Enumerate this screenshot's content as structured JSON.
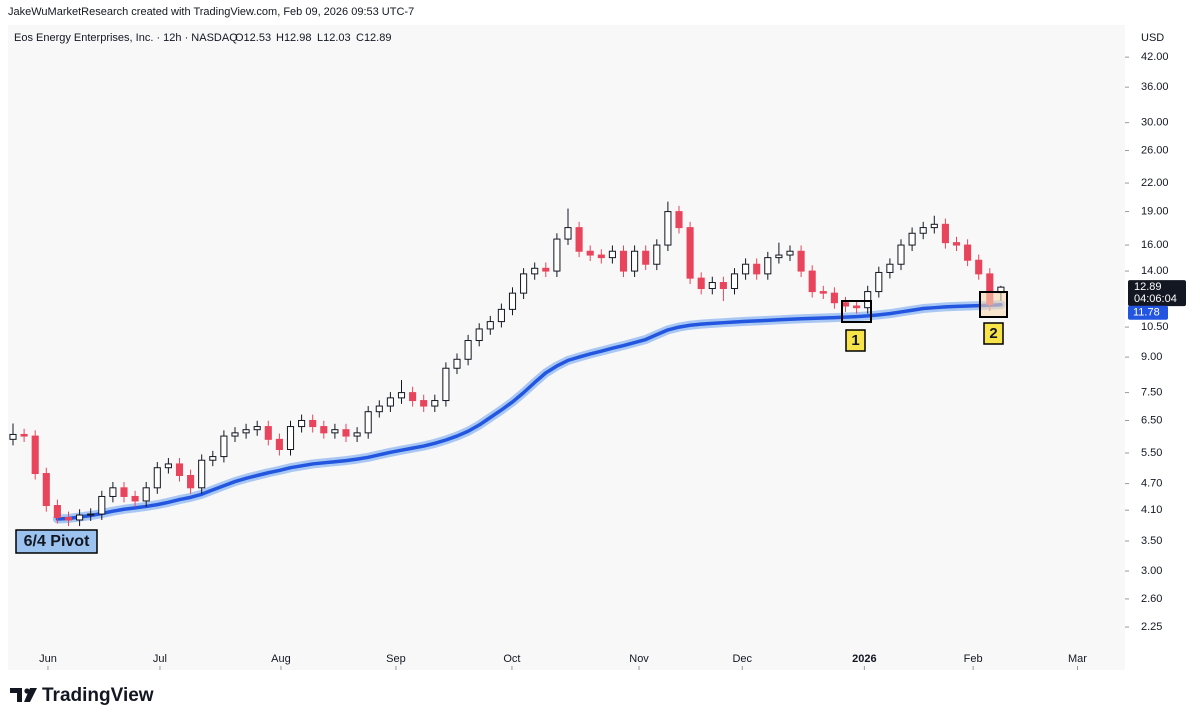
{
  "chart_data": {
    "type": "candlestick",
    "header": "JakeWuMarketResearch created with TradingView.com, Feb 09, 2026 09:53 UTC-7",
    "title": "Eos Energy Enterprises, Inc. · 12h · NASDAQ",
    "ohlc_labels": [
      "O12.53",
      "H12.98",
      "L12.03",
      "C12.89"
    ],
    "currency": "USD",
    "countdown": "04:06:04",
    "brand": "TradingView",
    "annotations": [
      "6/4 Pivot",
      "1",
      "2"
    ],
    "log_scale": true,
    "up_color": "#ffffff",
    "up_stroke": "#131722",
    "down_color": "#e8455c",
    "open": [
      5.9,
      6.05,
      6.0,
      4.95,
      4.2,
      3.95,
      3.9,
      4.0,
      4.02,
      4.4,
      4.6,
      4.4,
      4.3,
      4.6,
      5.1,
      5.2,
      4.9,
      4.6,
      5.3,
      5.4,
      6.0,
      6.1,
      6.2,
      6.3,
      5.9,
      5.6,
      6.3,
      6.5,
      6.3,
      6.1,
      6.2,
      6.0,
      6.1,
      6.8,
      7.0,
      7.3,
      7.5,
      7.2,
      7.0,
      7.2,
      8.5,
      8.9,
      9.8,
      10.4,
      10.8,
      11.5,
      12.5,
      13.8,
      14.2,
      14.0,
      16.5,
      17.5,
      15.5,
      15.2,
      15.0,
      15.5,
      14.0,
      15.5,
      14.5,
      16.0,
      19.0,
      17.5,
      13.5,
      12.8,
      13.2,
      12.8,
      13.8,
      14.5,
      13.8,
      15.0,
      15.2,
      15.5,
      14.0,
      12.6,
      12.5,
      11.9,
      11.7,
      11.6,
      12.6,
      13.9,
      14.5,
      16.0,
      17.0,
      17.5,
      17.8,
      16.2,
      16.0,
      14.8,
      13.8,
      12.53
    ],
    "high": [
      6.4,
      6.23,
      6.18,
      5.1,
      4.33,
      4.07,
      4.12,
      4.14,
      4.53,
      4.74,
      4.74,
      4.53,
      4.74,
      5.25,
      5.36,
      5.36,
      5.05,
      5.46,
      5.56,
      6.18,
      6.28,
      6.39,
      6.49,
      6.49,
      6.08,
      6.49,
      6.7,
      6.7,
      6.49,
      6.39,
      6.39,
      6.28,
      7.0,
      7.21,
      7.52,
      8.0,
      7.73,
      7.42,
      7.42,
      8.76,
      9.17,
      10.09,
      10.71,
      11.12,
      11.85,
      12.88,
      14.21,
      14.63,
      14.63,
      17.0,
      19.3,
      18.03,
      15.97,
      15.66,
      15.97,
      15.97,
      15.97,
      15.97,
      16.48,
      20.0,
      19.57,
      18.03,
      13.91,
      13.6,
      13.6,
      14.21,
      14.94,
      14.94,
      15.45,
      16.2,
      15.97,
      15.97,
      14.42,
      12.98,
      12.88,
      12.26,
      12.05,
      12.98,
      14.32,
      14.94,
      16.48,
      17.51,
      18.03,
      18.6,
      18.33,
      16.69,
      16.48,
      15.24,
      14.21,
      12.98
    ],
    "low": [
      5.72,
      5.82,
      4.8,
      4.07,
      3.83,
      3.78,
      3.78,
      3.88,
      3.9,
      4.27,
      4.27,
      4.17,
      4.17,
      4.46,
      4.95,
      4.75,
      4.46,
      4.46,
      5.14,
      5.24,
      5.82,
      5.92,
      6.01,
      5.72,
      5.43,
      5.43,
      6.11,
      6.11,
      5.92,
      5.92,
      5.82,
      5.82,
      5.92,
      6.6,
      6.79,
      7.08,
      6.98,
      6.79,
      6.79,
      6.98,
      8.25,
      8.63,
      9.51,
      10.09,
      10.48,
      11.16,
      12.13,
      13.39,
      13.58,
      13.58,
      16.01,
      15.04,
      14.74,
      14.55,
      14.55,
      13.58,
      13.58,
      14.07,
      14.07,
      15.52,
      16.98,
      13.1,
      12.42,
      12.42,
      12.0,
      12.42,
      13.39,
      13.39,
      13.39,
      14.55,
      14.74,
      13.58,
      12.22,
      12.13,
      11.54,
      11.35,
      11.25,
      11.25,
      12.22,
      13.48,
      14.07,
      15.52,
      16.49,
      16.98,
      15.71,
      15.52,
      14.36,
      13.39,
      11.4,
      12.03
    ],
    "close": [
      6.05,
      6.0,
      4.95,
      4.2,
      3.95,
      3.9,
      4.0,
      4.02,
      4.4,
      4.6,
      4.4,
      4.3,
      4.6,
      5.1,
      5.2,
      4.9,
      4.6,
      5.3,
      5.4,
      6.0,
      6.1,
      6.2,
      6.3,
      5.9,
      5.6,
      6.3,
      6.5,
      6.3,
      6.1,
      6.2,
      6.0,
      6.1,
      6.8,
      7.0,
      7.3,
      7.5,
      7.2,
      7.0,
      7.2,
      8.5,
      8.9,
      9.8,
      10.4,
      10.8,
      11.5,
      12.5,
      13.8,
      14.2,
      14.0,
      16.5,
      17.5,
      15.5,
      15.2,
      15.0,
      15.5,
      14.0,
      15.5,
      14.5,
      16.0,
      19.0,
      17.5,
      13.5,
      12.8,
      13.2,
      12.8,
      13.8,
      14.5,
      13.8,
      15.0,
      15.2,
      15.5,
      14.0,
      12.6,
      12.5,
      11.9,
      11.7,
      11.6,
      12.6,
      13.9,
      14.5,
      16.0,
      17.0,
      17.5,
      17.8,
      16.2,
      16.0,
      14.8,
      13.8,
      11.8,
      12.89
    ],
    "overlay": {
      "color": "#2356e0",
      "band_color": "#a9c7f3",
      "values": [
        null,
        null,
        null,
        null,
        3.92,
        3.93,
        3.96,
        3.99,
        4.03,
        4.08,
        4.12,
        4.15,
        4.18,
        4.22,
        4.27,
        4.33,
        4.38,
        4.45,
        4.55,
        4.65,
        4.75,
        4.83,
        4.9,
        4.97,
        5.03,
        5.1,
        5.15,
        5.2,
        5.23,
        5.26,
        5.29,
        5.33,
        5.38,
        5.45,
        5.52,
        5.58,
        5.64,
        5.7,
        5.78,
        5.88,
        6.0,
        6.15,
        6.35,
        6.6,
        6.86,
        7.15,
        7.5,
        7.9,
        8.3,
        8.6,
        8.85,
        9.0,
        9.15,
        9.28,
        9.42,
        9.55,
        9.7,
        9.85,
        10.1,
        10.35,
        10.5,
        10.6,
        10.66,
        10.7,
        10.74,
        10.78,
        10.81,
        10.84,
        10.87,
        10.9,
        10.93,
        10.96,
        10.98,
        11.0,
        11.02,
        11.05,
        11.08,
        11.12,
        11.18,
        11.25,
        11.35,
        11.45,
        11.55,
        11.6,
        11.65,
        11.68,
        11.7,
        11.72,
        11.75,
        11.78
      ]
    },
    "xlim": [
      -0.45,
      100.18
    ],
    "xticks": [
      {
        "value": 3.15,
        "label": "Jun"
      },
      {
        "value": 13.24,
        "label": "Jul"
      },
      {
        "value": 24.14,
        "label": "Aug"
      },
      {
        "value": 34.5,
        "label": "Sep"
      },
      {
        "value": 44.95,
        "label": "Oct"
      },
      {
        "value": 56.4,
        "label": "Nov"
      },
      {
        "value": 65.7,
        "label": "Dec"
      },
      {
        "value": 76.7,
        "label": "2026"
      },
      {
        "value": 86.5,
        "label": "Feb"
      },
      {
        "value": 95.9,
        "label": "Mar"
      }
    ],
    "ylim": [
      2.0,
      44.7
    ],
    "yticks": [
      {
        "value": 42,
        "label": "42.00"
      },
      {
        "value": 36,
        "label": "36.00"
      },
      {
        "value": 30,
        "label": "30.00"
      },
      {
        "value": 26,
        "label": "26.00"
      },
      {
        "value": 22,
        "label": "22.00"
      },
      {
        "value": 19,
        "label": "19.00"
      },
      {
        "value": 16,
        "label": "16.00"
      },
      {
        "value": 14,
        "label": "14.00"
      },
      {
        "value": 10.5,
        "label": "10.50"
      },
      {
        "value": 9,
        "label": "9.00"
      },
      {
        "value": 7.5,
        "label": "7.50"
      },
      {
        "value": 6.5,
        "label": "6.50"
      },
      {
        "value": 5.5,
        "label": "5.50"
      },
      {
        "value": 4.7,
        "label": "4.70"
      },
      {
        "value": 4.1,
        "label": "4.10"
      },
      {
        "value": 3.5,
        "label": "3.50"
      },
      {
        "value": 3,
        "label": "3.00"
      },
      {
        "value": 2.6,
        "label": "2.60"
      },
      {
        "value": 2.25,
        "label": "2.25"
      }
    ]
  }
}
